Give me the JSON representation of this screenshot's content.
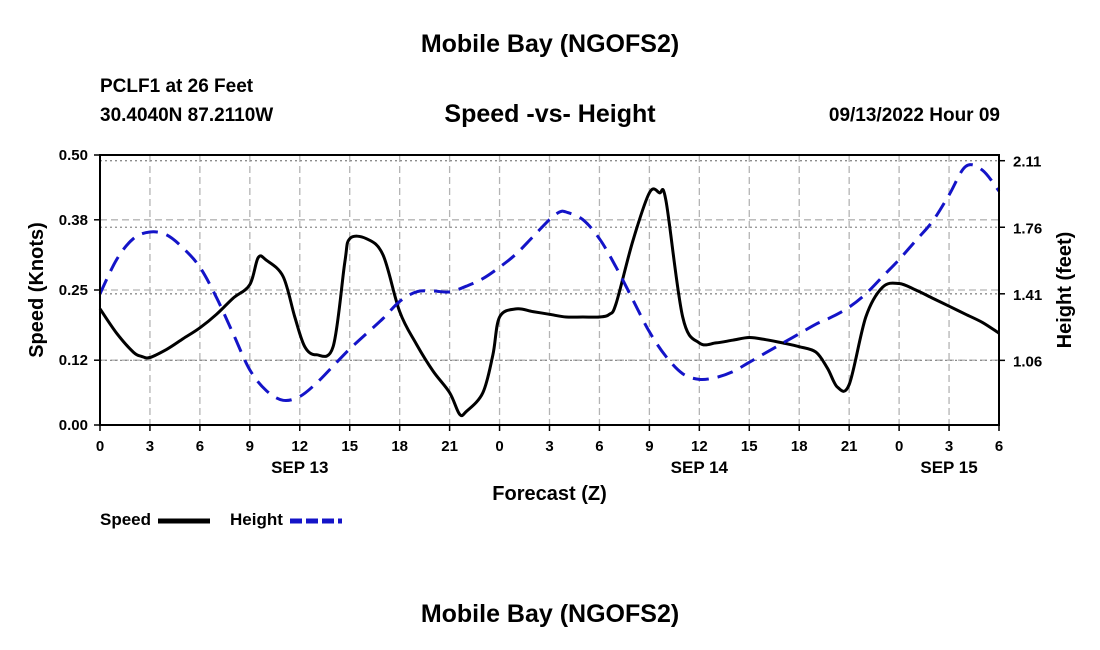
{
  "header": {
    "main_title": "Mobile Bay (NGOFS2)",
    "station": "PCLF1 at 26 Feet",
    "coords": "30.4040N  87.2110W",
    "chart_title": "Speed -vs- Height",
    "date_stamp": "09/13/2022 Hour 09"
  },
  "footer": {
    "title": "Mobile Bay (NGOFS2)"
  },
  "chart_data": {
    "type": "line",
    "title": "Speed -vs- Height",
    "xlabel": "Forecast (Z)",
    "ylabel_left": "Speed (Knots)",
    "ylabel_right": "Height (feet)",
    "x_unit": "hours from 00Z SEP 13",
    "xlim": [
      0,
      54
    ],
    "x_ticks": [
      0,
      3,
      6,
      9,
      12,
      15,
      18,
      21,
      24,
      27,
      30,
      33,
      36,
      39,
      42,
      45,
      48,
      51,
      54
    ],
    "x_tick_labels": [
      "0",
      "3",
      "6",
      "9",
      "12",
      "15",
      "18",
      "21",
      "0",
      "3",
      "6",
      "9",
      "12",
      "15",
      "18",
      "21",
      "0",
      "3",
      "6"
    ],
    "day_labels": [
      {
        "x": 12,
        "label": "SEP 13"
      },
      {
        "x": 36,
        "label": "SEP 14"
      },
      {
        "x": 51,
        "label": "SEP 15"
      }
    ],
    "ylim_left": [
      0,
      0.5
    ],
    "y_ticks_left": [
      0.0,
      0.12,
      0.25,
      0.38,
      0.5
    ],
    "y_tick_labels_left": [
      "0.00",
      "0.12",
      "0.25",
      "0.38",
      "0.50"
    ],
    "ylim_right": [
      0.72,
      2.14
    ],
    "y_ticks_right": [
      1.06,
      1.41,
      1.76,
      2.11
    ],
    "y_tick_labels_right": [
      "1.06",
      "1.41",
      "1.76",
      "2.11"
    ],
    "grid": true,
    "legend": "bottom-left",
    "series": [
      {
        "name": "Speed",
        "axis": "left",
        "color": "#000000",
        "dash": "solid",
        "x": [
          0,
          1,
          2,
          2.5,
          3,
          4,
          5,
          6,
          7,
          8,
          9,
          9.5,
          10,
          11,
          11.7,
          12.3,
          13,
          14,
          14.7,
          15,
          16,
          17,
          18,
          19,
          20,
          21,
          21.6,
          22,
          23,
          23.6,
          24,
          25,
          26,
          27,
          28,
          29,
          30,
          30.6,
          31,
          32,
          33,
          33.6,
          34,
          35,
          36,
          37,
          38,
          39,
          40,
          41,
          42,
          43,
          43.7,
          44.3,
          45,
          46,
          47,
          48,
          49,
          50,
          51,
          52,
          53,
          54
        ],
        "values": [
          0.215,
          0.17,
          0.135,
          0.127,
          0.125,
          0.14,
          0.16,
          0.18,
          0.205,
          0.235,
          0.26,
          0.31,
          0.305,
          0.275,
          0.2,
          0.145,
          0.13,
          0.145,
          0.3,
          0.345,
          0.345,
          0.315,
          0.21,
          0.15,
          0.1,
          0.06,
          0.02,
          0.025,
          0.06,
          0.13,
          0.2,
          0.215,
          0.21,
          0.205,
          0.2,
          0.2,
          0.2,
          0.205,
          0.225,
          0.34,
          0.43,
          0.43,
          0.415,
          0.2,
          0.152,
          0.152,
          0.157,
          0.162,
          0.158,
          0.152,
          0.145,
          0.135,
          0.105,
          0.07,
          0.075,
          0.2,
          0.255,
          0.262,
          0.25,
          0.235,
          0.22,
          0.205,
          0.19,
          0.17
        ]
      },
      {
        "name": "Height",
        "axis": "right",
        "color": "#1414c8",
        "dash": "dashed",
        "x": [
          0,
          1,
          2,
          3,
          4,
          5,
          6,
          7,
          8,
          9,
          10,
          11,
          12,
          13,
          14,
          15,
          16,
          17,
          18,
          19,
          20,
          21,
          22,
          23,
          24,
          25,
          26,
          27,
          27.6,
          28,
          29,
          30,
          31,
          32,
          33,
          34,
          35,
          36,
          37,
          38,
          39,
          40,
          41,
          42,
          43,
          44,
          45,
          46,
          47,
          48,
          49,
          50,
          51,
          52,
          53,
          54
        ],
        "values": [
          1.41,
          1.59,
          1.7,
          1.735,
          1.72,
          1.65,
          1.55,
          1.39,
          1.2,
          1.01,
          0.9,
          0.85,
          0.87,
          0.94,
          1.03,
          1.12,
          1.2,
          1.28,
          1.37,
          1.42,
          1.425,
          1.42,
          1.45,
          1.49,
          1.55,
          1.62,
          1.71,
          1.8,
          1.84,
          1.84,
          1.8,
          1.7,
          1.55,
          1.38,
          1.21,
          1.08,
          0.99,
          0.96,
          0.97,
          1.0,
          1.05,
          1.1,
          1.15,
          1.2,
          1.25,
          1.29,
          1.34,
          1.41,
          1.5,
          1.59,
          1.69,
          1.79,
          1.93,
          2.08,
          2.06,
          1.95
        ]
      }
    ]
  }
}
